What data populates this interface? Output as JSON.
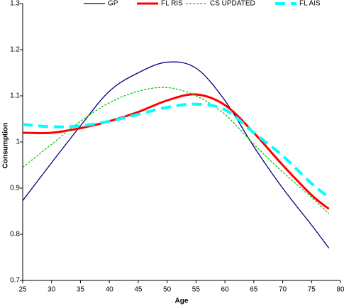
{
  "chart_data": {
    "type": "line",
    "x_label": "Age",
    "y_label": "Consumption",
    "x": [
      25,
      30,
      35,
      40,
      45,
      50,
      55,
      60,
      65,
      70,
      75,
      78
    ],
    "series": [
      {
        "name": "GP",
        "color": "#000080",
        "width": 1.3,
        "dash": "none",
        "values": [
          0.873,
          0.955,
          1.035,
          1.11,
          1.15,
          1.173,
          1.16,
          1.09,
          0.99,
          0.9,
          0.82,
          0.77
        ]
      },
      {
        "name": "FL RIS",
        "color": "#ff0000",
        "width": 3,
        "dash": "none",
        "values": [
          1.02,
          1.02,
          1.03,
          1.045,
          1.065,
          1.09,
          1.103,
          1.08,
          1.02,
          0.95,
          0.885,
          0.855
        ]
      },
      {
        "name": "CS UPDATED",
        "color": "#00cc00",
        "width": 1.3,
        "dash": "3 2",
        "values": [
          0.945,
          0.995,
          1.045,
          1.085,
          1.11,
          1.118,
          1.1,
          1.06,
          0.995,
          0.935,
          0.88,
          0.845
        ]
      },
      {
        "name": "FL AIS",
        "color": "#00ffff",
        "width": 4,
        "dash": "14 8",
        "values": [
          1.038,
          1.033,
          1.035,
          1.045,
          1.06,
          1.075,
          1.082,
          1.07,
          1.02,
          0.97,
          0.91,
          0.88
        ]
      }
    ],
    "xlim": [
      25,
      80
    ],
    "xticks": [
      25,
      30,
      35,
      40,
      45,
      50,
      55,
      60,
      65,
      70,
      75,
      80
    ],
    "ylim": [
      0.7,
      1.3
    ],
    "yticks": [
      0.7,
      0.8,
      0.9,
      1,
      1.1,
      1.2,
      1.3
    ],
    "grid": false,
    "legend": "top"
  }
}
